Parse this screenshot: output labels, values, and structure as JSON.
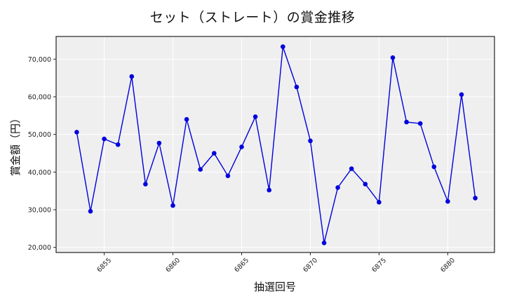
{
  "chart_data": {
    "type": "line",
    "title": "セット（ストレート）の賞金推移",
    "xlabel": "抽選回号",
    "ylabel": "賞金額（円）",
    "x": [
      6853,
      6854,
      6855,
      6856,
      6857,
      6858,
      6859,
      6860,
      6861,
      6862,
      6863,
      6864,
      6865,
      6866,
      6867,
      6868,
      6869,
      6870,
      6871,
      6872,
      6873,
      6874,
      6875,
      6876,
      6877,
      6878,
      6879,
      6880,
      6881,
      6882
    ],
    "series": [
      {
        "name": "賞金額",
        "color": "#0000dd",
        "marker": "circle",
        "values": [
          50600,
          29600,
          48800,
          47300,
          65400,
          36800,
          47700,
          31100,
          54000,
          40700,
          45000,
          39000,
          46700,
          54700,
          35200,
          73300,
          62600,
          48300,
          21200,
          35900,
          40900,
          36800,
          32000,
          70400,
          53300,
          52900,
          41400,
          32200,
          60600,
          33100
        ]
      }
    ],
    "xticks": [
      6855,
      6860,
      6865,
      6870,
      6875,
      6880
    ],
    "xtick_labels": [
      "6855",
      "6860",
      "6865",
      "6870",
      "6875",
      "6880"
    ],
    "yticks": [
      20000,
      30000,
      40000,
      50000,
      60000,
      70000
    ],
    "ytick_labels": [
      "20,000",
      "30,000",
      "40,000",
      "50,000",
      "60,000",
      "70,000"
    ],
    "xlim": [
      6851.5,
      6883.4
    ],
    "ylim": [
      18640,
      76020
    ],
    "grid": true,
    "legend": null,
    "colors": {
      "line": "#0000dd",
      "plot_background": "#efefef",
      "grid": "#ffffff",
      "frame": "#222222"
    }
  }
}
